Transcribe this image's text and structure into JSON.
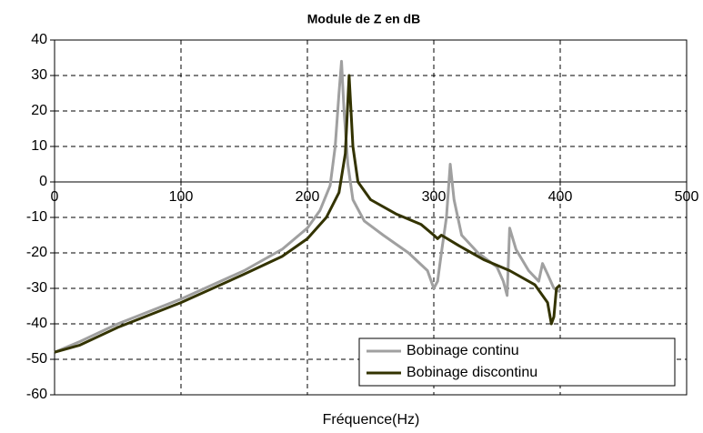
{
  "chart_data": {
    "type": "line",
    "title": "Module de Z en dB",
    "x_label": "Fréquence(Hz)",
    "xlim": [
      0,
      500
    ],
    "xticks": [
      0,
      100,
      200,
      300,
      400,
      500
    ],
    "ylim": [
      -60,
      40
    ],
    "yticks": [
      -60,
      -50,
      -40,
      -30,
      -20,
      -10,
      0,
      10,
      20,
      30,
      40
    ],
    "grid": true,
    "legend": "lower right",
    "series": [
      {
        "name": "Bobinage continu",
        "color": "#a0a0a0",
        "x": [
          0,
          20,
          50,
          100,
          150,
          180,
          200,
          210,
          218,
          222,
          225,
          227,
          229,
          232,
          236,
          245,
          260,
          280,
          295,
          300,
          303,
          306,
          310,
          313,
          316,
          322,
          335,
          350,
          355,
          358,
          360,
          365,
          375,
          383,
          386,
          390,
          395,
          400
        ],
        "values": [
          -48,
          -45,
          -40,
          -33,
          -25,
          -19,
          -13,
          -8,
          -1,
          10,
          25,
          34,
          20,
          5,
          -5,
          -11,
          -15,
          -20,
          -25,
          -30,
          -28,
          -20,
          -10,
          5,
          -5,
          -15,
          -20,
          -24,
          -28,
          -32,
          -13,
          -19,
          -25,
          -28,
          -23,
          -26,
          -30,
          -31
        ]
      },
      {
        "name": "Bobinage discontinu",
        "color": "#333300",
        "x": [
          0,
          20,
          50,
          100,
          150,
          180,
          200,
          215,
          225,
          230,
          233,
          236,
          240,
          250,
          270,
          290,
          300,
          303,
          306,
          320,
          340,
          360,
          380,
          390,
          393,
          395,
          397,
          400
        ],
        "values": [
          -48,
          -46,
          -41,
          -34,
          -26,
          -21,
          -16,
          -10,
          -3,
          8,
          30,
          10,
          0,
          -5,
          -9,
          -12,
          -15,
          -16,
          -15,
          -18,
          -22,
          -25,
          -29,
          -34,
          -40,
          -38,
          -30,
          -29
        ]
      }
    ]
  }
}
